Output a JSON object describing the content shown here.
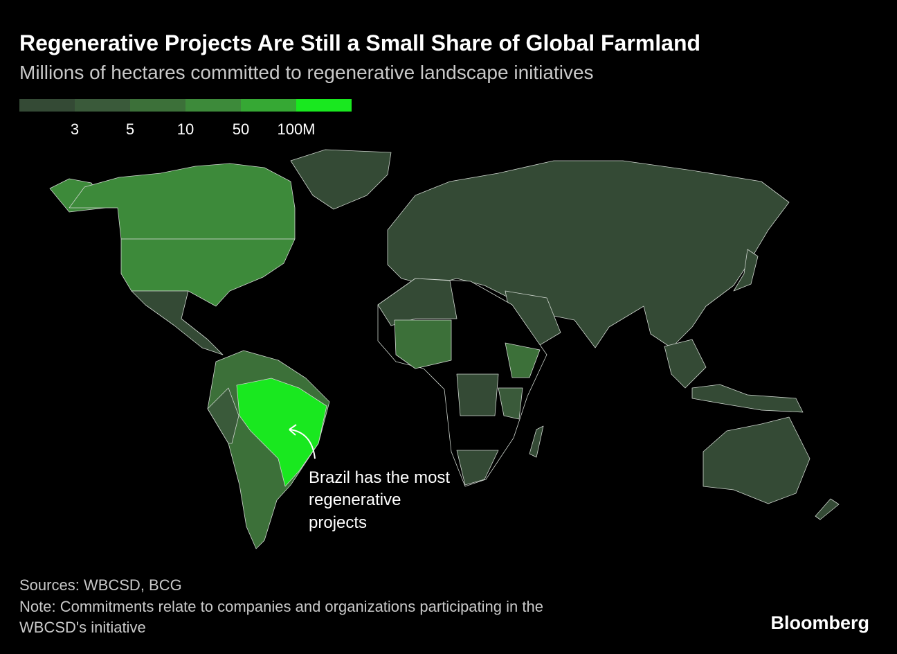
{
  "header": {
    "title": "Regenerative Projects Are Still a Small Share of Global Farmland",
    "subtitle": "Millions of hectares committed to regenerative landscape initiatives"
  },
  "legend": {
    "colors": [
      "#344a35",
      "#3a5a3a",
      "#3c7039",
      "#3d8a3a",
      "#36a834",
      "#19e81f"
    ],
    "ticks": [
      3,
      5,
      10,
      50,
      {
        "value": 100,
        "label": "100M"
      }
    ]
  },
  "annotation": {
    "lines": [
      "Brazil has the most",
      "regenerative",
      "projects"
    ]
  },
  "footer": {
    "sources": "Sources: WBCSD, BCG",
    "note": [
      "Note: Commitments relate to companies and organizations participating in the",
      "WBCSD's initiative"
    ],
    "logo": "Bloomberg"
  }
}
